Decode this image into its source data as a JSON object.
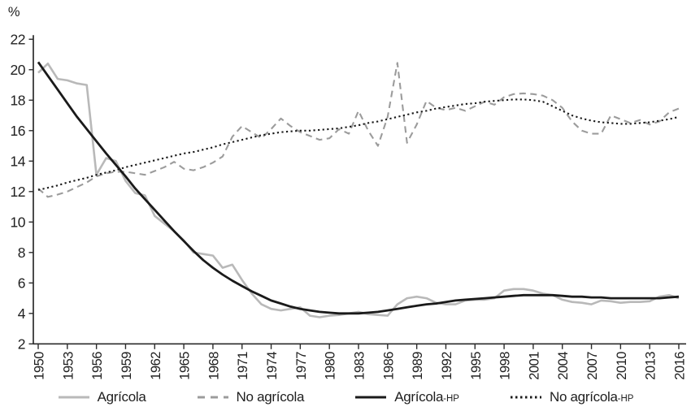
{
  "chart_data": {
    "type": "line",
    "title": "",
    "xlabel": "",
    "ylabel": "%",
    "ylim": [
      2,
      22
    ],
    "yticks": [
      2,
      4,
      6,
      8,
      10,
      12,
      14,
      16,
      18,
      20,
      22
    ],
    "xlim": [
      1950,
      2016
    ],
    "xticks": [
      1950,
      1953,
      1956,
      1959,
      1962,
      1965,
      1968,
      1971,
      1974,
      1977,
      1980,
      1983,
      1986,
      1989,
      1992,
      1995,
      1998,
      2001,
      2004,
      2007,
      2010,
      2013,
      2016
    ],
    "x": [
      1950,
      1951,
      1952,
      1953,
      1954,
      1955,
      1956,
      1957,
      1958,
      1959,
      1960,
      1961,
      1962,
      1963,
      1964,
      1965,
      1966,
      1967,
      1968,
      1969,
      1970,
      1971,
      1972,
      1973,
      1974,
      1975,
      1976,
      1977,
      1978,
      1979,
      1980,
      1981,
      1982,
      1983,
      1984,
      1985,
      1986,
      1987,
      1988,
      1989,
      1990,
      1991,
      1992,
      1993,
      1994,
      1995,
      1996,
      1997,
      1998,
      1999,
      2000,
      2001,
      2002,
      2003,
      2004,
      2005,
      2006,
      2007,
      2008,
      2009,
      2010,
      2011,
      2012,
      2013,
      2014,
      2015,
      2016
    ],
    "grid": false,
    "legend_position": "bottom",
    "axis_color": "#2b2b2b",
    "series": [
      {
        "id": "agricola",
        "name": "Agrícola",
        "suffix": "",
        "line_style": "solid",
        "color": "#b9b9b9",
        "width": 2.6,
        "values": [
          19.8,
          20.4,
          19.4,
          19.3,
          19.1,
          19.0,
          13.1,
          14.2,
          14.0,
          12.7,
          11.9,
          11.75,
          10.4,
          9.9,
          9.4,
          8.8,
          8.0,
          7.9,
          7.8,
          7.0,
          7.2,
          6.2,
          5.3,
          4.6,
          4.3,
          4.2,
          4.3,
          4.4,
          3.85,
          3.75,
          3.85,
          3.9,
          4.0,
          4.1,
          3.95,
          3.9,
          3.85,
          4.6,
          5.0,
          5.1,
          5.0,
          4.7,
          4.6,
          4.6,
          4.85,
          4.9,
          4.9,
          5.0,
          5.5,
          5.6,
          5.6,
          5.5,
          5.3,
          5.2,
          4.9,
          4.75,
          4.7,
          4.6,
          4.85,
          4.8,
          4.7,
          4.75,
          4.75,
          4.8,
          5.1,
          5.2,
          5.0
        ]
      },
      {
        "id": "no-agricola",
        "name": "No agrícola",
        "suffix": "",
        "line_style": "dashed",
        "color": "#9c9c9c",
        "width": 2.1,
        "values": [
          12.2,
          11.65,
          11.8,
          12.0,
          12.3,
          12.6,
          13.0,
          13.2,
          13.3,
          13.3,
          13.2,
          13.1,
          13.35,
          13.6,
          13.95,
          13.5,
          13.4,
          13.6,
          13.9,
          14.3,
          15.6,
          16.3,
          15.9,
          15.5,
          16.1,
          16.8,
          16.3,
          15.9,
          15.65,
          15.4,
          15.5,
          16.1,
          15.8,
          17.3,
          16.0,
          15.0,
          16.9,
          20.45,
          15.2,
          16.4,
          17.95,
          17.5,
          17.35,
          17.5,
          17.3,
          17.6,
          17.9,
          17.7,
          18.2,
          18.4,
          18.45,
          18.4,
          18.3,
          18.0,
          17.5,
          16.6,
          16.0,
          15.8,
          15.8,
          17.0,
          16.75,
          16.5,
          16.7,
          16.4,
          16.6,
          17.2,
          17.45
        ]
      },
      {
        "id": "agricola-hp",
        "name": "Agrícola",
        "suffix": "-HP",
        "line_style": "solid",
        "color": "#1a1a1a",
        "width": 2.8,
        "values": [
          20.5,
          19.6,
          18.7,
          17.8,
          16.9,
          16.1,
          15.3,
          14.5,
          13.75,
          13.0,
          12.2,
          11.5,
          10.8,
          10.1,
          9.4,
          8.75,
          8.1,
          7.5,
          7.0,
          6.55,
          6.15,
          5.8,
          5.45,
          5.15,
          4.85,
          4.65,
          4.45,
          4.3,
          4.2,
          4.1,
          4.05,
          4.0,
          4.0,
          4.0,
          4.05,
          4.1,
          4.2,
          4.3,
          4.4,
          4.5,
          4.6,
          4.65,
          4.75,
          4.85,
          4.9,
          4.95,
          5.0,
          5.05,
          5.1,
          5.15,
          5.2,
          5.2,
          5.2,
          5.2,
          5.15,
          5.1,
          5.1,
          5.05,
          5.05,
          5.0,
          5.0,
          5.0,
          5.0,
          5.0,
          5.0,
          5.05,
          5.1
        ]
      },
      {
        "id": "no-agricola-hp",
        "name": "No agrícola",
        "suffix": "-HP",
        "line_style": "dotted",
        "color": "#1a1a1a",
        "width": 2.1,
        "values": [
          12.1,
          12.25,
          12.4,
          12.6,
          12.75,
          12.9,
          13.1,
          13.25,
          13.4,
          13.6,
          13.75,
          13.9,
          14.05,
          14.2,
          14.35,
          14.5,
          14.6,
          14.75,
          14.9,
          15.1,
          15.25,
          15.4,
          15.55,
          15.7,
          15.8,
          15.9,
          15.95,
          16.0,
          16.0,
          16.05,
          16.1,
          16.15,
          16.25,
          16.35,
          16.5,
          16.6,
          16.75,
          16.9,
          17.05,
          17.2,
          17.3,
          17.45,
          17.55,
          17.65,
          17.75,
          17.8,
          17.9,
          17.95,
          18.0,
          18.05,
          18.05,
          18.0,
          17.9,
          17.6,
          17.3,
          17.0,
          16.8,
          16.65,
          16.55,
          16.5,
          16.45,
          16.45,
          16.5,
          16.55,
          16.65,
          16.75,
          16.9
        ]
      }
    ]
  }
}
